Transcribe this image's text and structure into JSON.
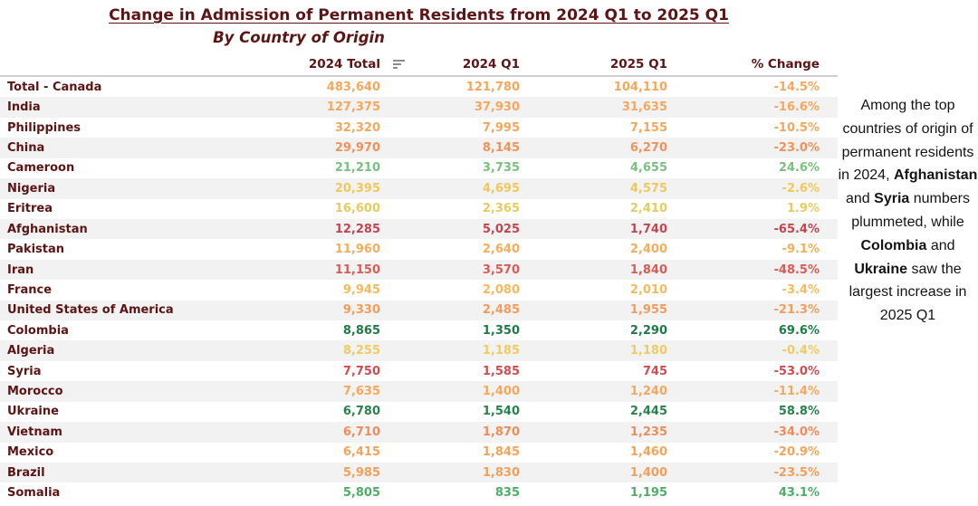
{
  "colors": {
    "title_text": "#5C1414",
    "header_text": "#5C1414",
    "country_text": "#5C1414",
    "row_alt_bg": "#F2F2F2",
    "header_border": "#CFCDCD",
    "annotation_text": "#141414",
    "sort_icon": "#8C8C8C"
  },
  "chart_data": {
    "type": "table",
    "title": "Change in Admission of Permanent Residents from 2024 Q1 to 2025 Q1",
    "subtitle": "By Country of Origin",
    "columns": [
      "",
      "2024 Total",
      "2024 Q1",
      "2025 Q1",
      "% Change"
    ],
    "sort_indicator_column": "2024 Total",
    "rows": [
      {
        "country": "Total - Canada",
        "total_2024": "483,640",
        "q1_2024": "121,780",
        "q1_2025": "104,110",
        "pct_change": "-14.5%",
        "color": "#F6A75B"
      },
      {
        "country": "India",
        "total_2024": "127,375",
        "q1_2024": "37,930",
        "q1_2025": "31,635",
        "pct_change": "-16.6%",
        "color": "#F6A75B"
      },
      {
        "country": "Philippines",
        "total_2024": "32,320",
        "q1_2024": "7,995",
        "q1_2025": "7,155",
        "pct_change": "-10.5%",
        "color": "#F6A75B"
      },
      {
        "country": "China",
        "total_2024": "29,970",
        "q1_2024": "8,145",
        "q1_2025": "6,270",
        "pct_change": "-23.0%",
        "color": "#F29159"
      },
      {
        "country": "Cameroon",
        "total_2024": "21,210",
        "q1_2024": "3,735",
        "q1_2025": "4,655",
        "pct_change": "24.6%",
        "color": "#79C17E"
      },
      {
        "country": "Nigeria",
        "total_2024": "20,395",
        "q1_2024": "4,695",
        "q1_2025": "4,575",
        "pct_change": "-2.6%",
        "color": "#F0C75E"
      },
      {
        "country": "Eritrea",
        "total_2024": "16,600",
        "q1_2024": "2,365",
        "q1_2025": "2,410",
        "pct_change": "1.9%",
        "color": "#E4CC60"
      },
      {
        "country": "Afghanistan",
        "total_2024": "12,285",
        "q1_2024": "5,025",
        "q1_2025": "1,740",
        "pct_change": "-65.4%",
        "color": "#C4454F"
      },
      {
        "country": "Pakistan",
        "total_2024": "11,960",
        "q1_2024": "2,640",
        "q1_2025": "2,400",
        "pct_change": "-9.1%",
        "color": "#F6AD5C"
      },
      {
        "country": "Iran",
        "total_2024": "11,150",
        "q1_2024": "3,570",
        "q1_2025": "1,840",
        "pct_change": "-48.5%",
        "color": "#DA5B55"
      },
      {
        "country": "France",
        "total_2024": "9,945",
        "q1_2024": "2,080",
        "q1_2025": "2,010",
        "pct_change": "-3.4%",
        "color": "#F4BA5E"
      },
      {
        "country": "United States of America",
        "total_2024": "9,330",
        "q1_2024": "2,485",
        "q1_2025": "1,955",
        "pct_change": "-21.3%",
        "color": "#F39C5B"
      },
      {
        "country": "Colombia",
        "total_2024": "8,865",
        "q1_2024": "1,350",
        "q1_2025": "2,290",
        "pct_change": "69.6%",
        "color": "#1E7B47"
      },
      {
        "country": "Algeria",
        "total_2024": "8,255",
        "q1_2024": "1,185",
        "q1_2025": "1,180",
        "pct_change": "-0.4%",
        "color": "#EFCB63"
      },
      {
        "country": "Syria",
        "total_2024": "7,750",
        "q1_2024": "1,585",
        "q1_2025": "745",
        "pct_change": "-53.0%",
        "color": "#D14B50"
      },
      {
        "country": "Morocco",
        "total_2024": "7,635",
        "q1_2024": "1,400",
        "q1_2025": "1,240",
        "pct_change": "-11.4%",
        "color": "#F6A75B"
      },
      {
        "country": "Ukraine",
        "total_2024": "6,780",
        "q1_2024": "1,540",
        "q1_2025": "2,445",
        "pct_change": "58.8%",
        "color": "#27824C"
      },
      {
        "country": "Vietnam",
        "total_2024": "6,710",
        "q1_2024": "1,870",
        "q1_2025": "1,235",
        "pct_change": "-34.0%",
        "color": "#F18B58"
      },
      {
        "country": "Mexico",
        "total_2024": "6,415",
        "q1_2024": "1,845",
        "q1_2025": "1,460",
        "pct_change": "-20.9%",
        "color": "#F5A35A"
      },
      {
        "country": "Brazil",
        "total_2024": "5,985",
        "q1_2024": "1,830",
        "q1_2025": "1,400",
        "pct_change": "-23.5%",
        "color": "#F49E5A"
      },
      {
        "country": "Somalia",
        "total_2024": "5,805",
        "q1_2024": "835",
        "q1_2025": "1,195",
        "pct_change": "43.1%",
        "color": "#4FAD68"
      }
    ]
  },
  "header": {
    "title": "Change in Admission of Permanent Residents from 2024 Q1 to 2025 Q1",
    "subtitle": "By Country of Origin",
    "col_total": "2024 Total",
    "col_q1_2024": "2024 Q1",
    "col_q1_2025": "2025 Q1",
    "col_pct_change": "% Change",
    "sort_icon": "sort-descending-icon"
  },
  "annotation": {
    "segments": [
      {
        "text": "Among the top countries of origin of permanent residents in 2024, ",
        "bold": false
      },
      {
        "text": "Afghanistan",
        "bold": true
      },
      {
        "text": " and ",
        "bold": false
      },
      {
        "text": "Syria",
        "bold": true
      },
      {
        "text": " numbers plummeted, while ",
        "bold": false
      },
      {
        "text": "Colombia",
        "bold": true
      },
      {
        "text": " and ",
        "bold": false
      },
      {
        "text": "Ukraine",
        "bold": true
      },
      {
        "text": " saw the largest increase in 2025 Q1",
        "bold": false
      }
    ]
  }
}
